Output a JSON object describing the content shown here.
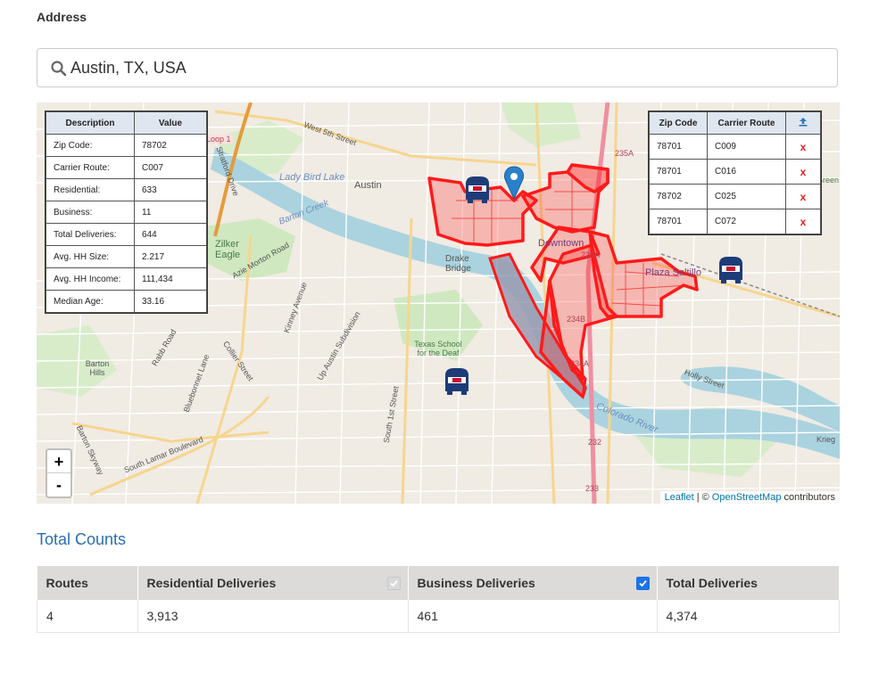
{
  "address": {
    "label": "Address",
    "value": "Austin, TX, USA"
  },
  "map": {
    "labels": [
      "Lady Bird Lake",
      "Austin",
      "Zilker Eagle",
      "Drake Bridge",
      "Downtown",
      "Plaza Saltillo",
      "Texas School for the Deaf",
      "Colorado River",
      "West 5th Street",
      "Stratford Drive",
      "Barton Creek",
      "Azie Morton Road",
      "Kinney Avenue",
      "Up Austin Subdivision",
      "South 1st Street",
      "South Lamar Boulevard",
      "Barton Skyway",
      "Rabb Road",
      "Collier Street",
      "Bluebonnet Lane",
      "Holly Street",
      "Barton Hills",
      "235A",
      "234B",
      "234A",
      "233A",
      "232",
      "233",
      "Krieg",
      "Green",
      "Loop 1"
    ],
    "zoom_in": "+",
    "zoom_out": "-",
    "attribution": {
      "leaflet": "Leaflet",
      "separator": "| ©",
      "osm": "OpenStreetMap",
      "suffix": "contributors"
    },
    "route_color": "#ff1a1a",
    "selected_fill": "#9a9ab0"
  },
  "info_table": {
    "headers": [
      "Description",
      "Value"
    ],
    "rows": [
      {
        "desc": "Zip Code:",
        "val": "78702"
      },
      {
        "desc": "Carrier Route:",
        "val": "C007"
      },
      {
        "desc": "Residential:",
        "val": "633"
      },
      {
        "desc": "Business:",
        "val": "11"
      },
      {
        "desc": "Total Deliveries:",
        "val": "644"
      },
      {
        "desc": "Avg. HH Size:",
        "val": "2.217"
      },
      {
        "desc": "Avg. HH Income:",
        "val": "111,434"
      },
      {
        "desc": "Median Age:",
        "val": "33.16"
      }
    ]
  },
  "route_table": {
    "headers": [
      "Zip Code",
      "Carrier Route"
    ],
    "upload_icon": "upload-icon",
    "delete_label": "x",
    "rows": [
      {
        "zip": "78701",
        "route": "C009"
      },
      {
        "zip": "78701",
        "route": "C016"
      },
      {
        "zip": "78702",
        "route": "C025"
      },
      {
        "zip": "78701",
        "route": "C072"
      }
    ]
  },
  "totals": {
    "title": "Total Counts",
    "headers": [
      "Routes",
      "Residential Deliveries",
      "Business Deliveries",
      "Total Deliveries"
    ],
    "values": [
      "4",
      "3,913",
      "461",
      "4,374"
    ],
    "residential_checked": true,
    "residential_disabled": true,
    "business_checked": true
  }
}
